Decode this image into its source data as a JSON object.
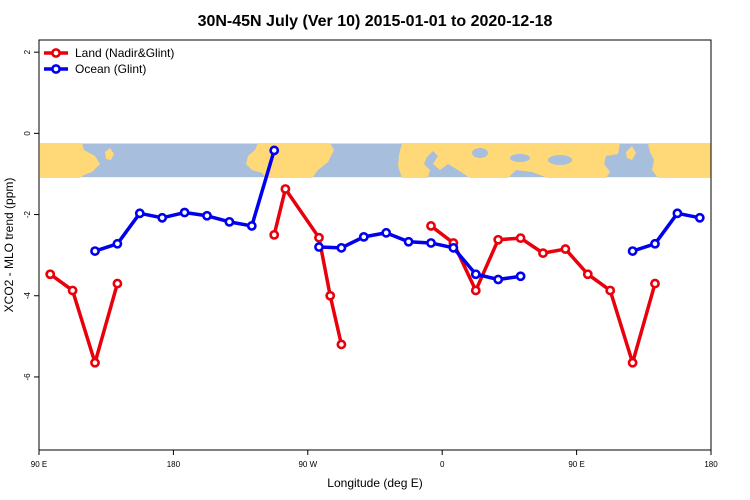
{
  "chart_data": {
    "type": "line",
    "title": "30N-45N July (Ver 10)   2015-01-01 to 2020-12-18",
    "xlabel": "Longitude (deg E)",
    "ylabel": "XCO2 - MLO trend (ppm)",
    "xlim": [
      90,
      540
    ],
    "ylim": [
      -7.8,
      2.3
    ],
    "x_ticks": [
      {
        "value": 90,
        "label": "90 E"
      },
      {
        "value": 180,
        "label": "180"
      },
      {
        "value": 270,
        "label": "90 W"
      },
      {
        "value": 360,
        "label": "0"
      },
      {
        "value": 450,
        "label": "90 E"
      },
      {
        "value": 540,
        "label": "180"
      }
    ],
    "y_ticks": [
      {
        "value": 2,
        "label": "2"
      },
      {
        "value": 0,
        "label": "0"
      },
      {
        "value": -2,
        "label": "-2"
      },
      {
        "value": -4,
        "label": "-4"
      },
      {
        "value": -6,
        "label": "-6"
      }
    ],
    "legend_position": "top-left",
    "map_band": {
      "y_top": -0.25,
      "y_bottom": -1.08,
      "land_color": "#ffd978",
      "ocean_color": "#a7bedd"
    },
    "series": [
      {
        "name": "Land (Nadir&Glint)",
        "color": "#e8000b",
        "segments": [
          [
            [
              97.5,
              -3.47
            ],
            [
              112.5,
              -3.87
            ],
            [
              127.5,
              -5.65
            ],
            [
              142.5,
              -3.7
            ]
          ],
          [
            [
              247.5,
              -2.5
            ],
            [
              255,
              -1.37
            ],
            [
              277.5,
              -2.57
            ],
            [
              285,
              -4.0
            ],
            [
              292.5,
              -5.2
            ]
          ],
          [
            [
              352.5,
              -2.28
            ],
            [
              367.5,
              -2.7
            ],
            [
              382.5,
              -3.87
            ],
            [
              397.5,
              -2.62
            ],
            [
              412.5,
              -2.58
            ],
            [
              427.5,
              -2.95
            ],
            [
              442.5,
              -2.85
            ],
            [
              457.5,
              -3.47
            ],
            [
              472.5,
              -3.87
            ],
            [
              487.5,
              -5.65
            ],
            [
              502.5,
              -3.7
            ]
          ]
        ]
      },
      {
        "name": "Ocean (Glint)",
        "color": "#0000ee",
        "segments": [
          [
            [
              127.5,
              -2.9
            ],
            [
              142.5,
              -2.72
            ],
            [
              157.5,
              -1.97
            ],
            [
              172.5,
              -2.08
            ],
            [
              187.5,
              -1.95
            ],
            [
              202.5,
              -2.03
            ],
            [
              217.5,
              -2.18
            ],
            [
              232.5,
              -2.28
            ],
            [
              247.5,
              -0.42
            ]
          ],
          [
            [
              277.5,
              -2.8
            ],
            [
              292.5,
              -2.82
            ],
            [
              307.5,
              -2.55
            ],
            [
              322.5,
              -2.45
            ],
            [
              337.5,
              -2.67
            ],
            [
              352.5,
              -2.7
            ],
            [
              367.5,
              -2.82
            ],
            [
              382.5,
              -3.47
            ],
            [
              397.5,
              -3.6
            ],
            [
              412.5,
              -3.52
            ]
          ],
          [
            [
              487.5,
              -2.9
            ],
            [
              502.5,
              -2.72
            ],
            [
              517.5,
              -1.97
            ],
            [
              532.5,
              -2.08
            ]
          ]
        ]
      }
    ]
  }
}
